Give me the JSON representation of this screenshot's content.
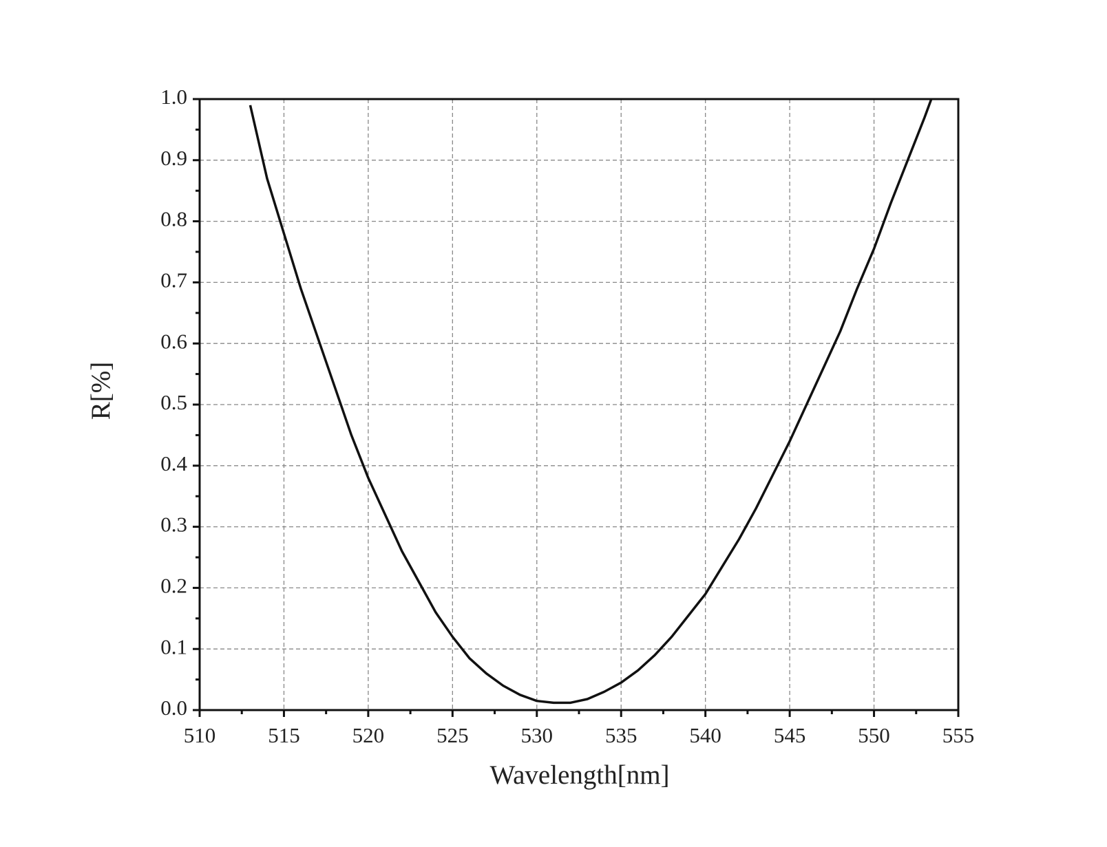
{
  "chart_data": {
    "type": "line",
    "xlabel": "Wavelength[nm]",
    "ylabel": "R[%]",
    "x": [
      513.0,
      513.5,
      514,
      515,
      516,
      517,
      518,
      519,
      520,
      521,
      522,
      523,
      524,
      525,
      526,
      527,
      528,
      529,
      530,
      531,
      532,
      533,
      534,
      535,
      536,
      537,
      538,
      539,
      540,
      541,
      542,
      543,
      544,
      545,
      546,
      547,
      548,
      549,
      550,
      551,
      552,
      553,
      553.4
    ],
    "series": [
      {
        "name": "R",
        "color": "#111111",
        "values": [
          0.99,
          0.93,
          0.87,
          0.78,
          0.69,
          0.61,
          0.53,
          0.45,
          0.38,
          0.32,
          0.26,
          0.21,
          0.16,
          0.12,
          0.085,
          0.06,
          0.04,
          0.025,
          0.015,
          0.012,
          0.012,
          0.018,
          0.03,
          0.045,
          0.065,
          0.09,
          0.12,
          0.155,
          0.19,
          0.235,
          0.28,
          0.33,
          0.385,
          0.44,
          0.5,
          0.56,
          0.62,
          0.69,
          0.755,
          0.83,
          0.9,
          0.97,
          1.0
        ]
      }
    ],
    "xlim": [
      510,
      555
    ],
    "xticks": [
      510,
      515,
      520,
      525,
      530,
      535,
      540,
      545,
      550,
      555
    ],
    "ylim": [
      0,
      1
    ],
    "yticks": [
      {
        "value": 0,
        "label": "0.0"
      },
      0.1,
      0.2,
      0.3,
      0.4,
      0.5,
      0.6,
      0.7,
      0.8,
      0.9,
      {
        "value": 1,
        "label": "1.0"
      }
    ],
    "grid": true
  }
}
